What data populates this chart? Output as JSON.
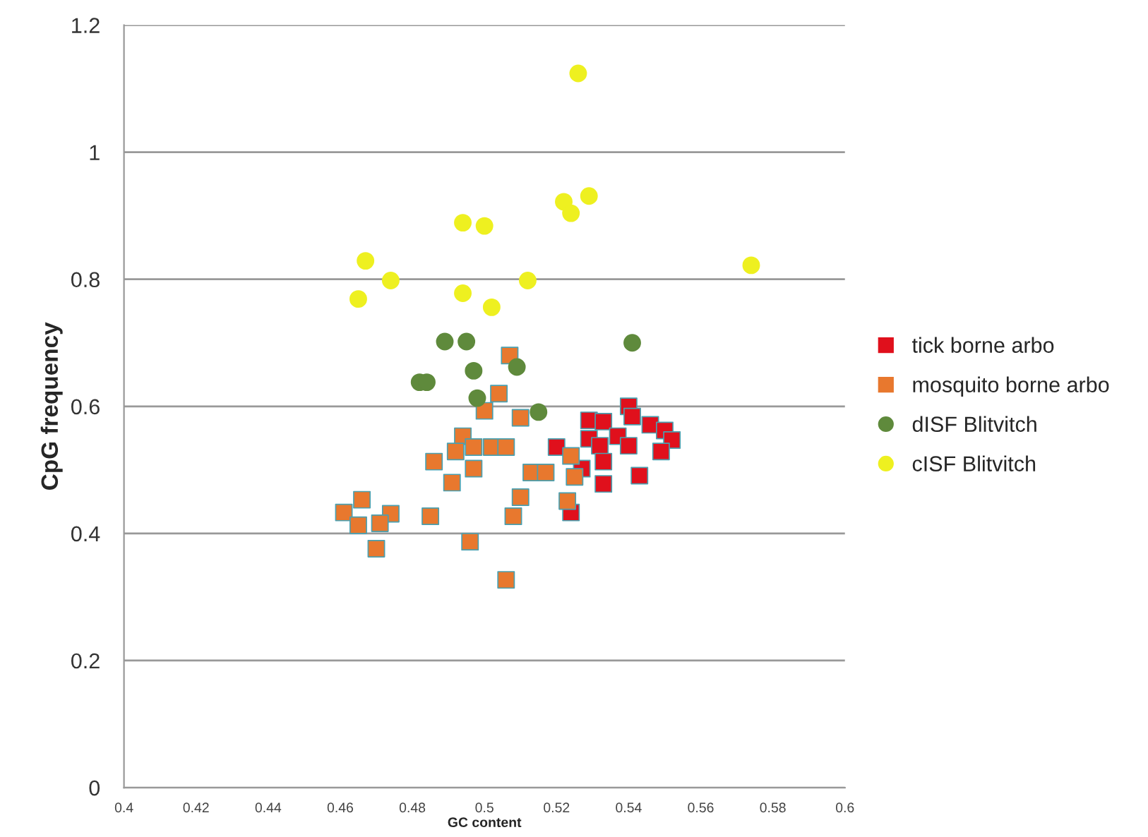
{
  "chart_data": {
    "type": "scatter",
    "xlabel": "GC content",
    "ylabel": "CpG frequency",
    "xlim": [
      0.4,
      0.6
    ],
    "ylim": [
      0,
      1.2
    ],
    "xticks": [
      0.4,
      0.42,
      0.44,
      0.46,
      0.48,
      0.5,
      0.52,
      0.54,
      0.56,
      0.58,
      0.6
    ],
    "yticks": [
      0,
      0.2,
      0.4,
      0.6,
      0.8,
      1,
      1.2
    ],
    "grid": "y",
    "legend": "right",
    "series": [
      {
        "name": "tick borne arbo",
        "color": "#e0101c",
        "marker": "square",
        "x": [
          0.54,
          0.541,
          0.529,
          0.533,
          0.546,
          0.55,
          0.552,
          0.529,
          0.537,
          0.532,
          0.54,
          0.549,
          0.533,
          0.527,
          0.543,
          0.533,
          0.524,
          0.52
        ],
        "values": [
          0.6,
          0.584,
          0.578,
          0.576,
          0.571,
          0.562,
          0.547,
          0.549,
          0.553,
          0.538,
          0.538,
          0.529,
          0.513,
          0.502,
          0.491,
          0.478,
          0.433,
          0.536
        ]
      },
      {
        "name": "mosquito borne arbo",
        "color": "#e8782e",
        "marker": "square",
        "x": [
          0.507,
          0.504,
          0.5,
          0.51,
          0.494,
          0.497,
          0.492,
          0.502,
          0.506,
          0.486,
          0.497,
          0.513,
          0.517,
          0.524,
          0.525,
          0.491,
          0.51,
          0.523,
          0.466,
          0.461,
          0.474,
          0.465,
          0.471,
          0.485,
          0.508,
          0.47,
          0.496,
          0.506
        ],
        "values": [
          0.68,
          0.62,
          0.593,
          0.582,
          0.553,
          0.536,
          0.529,
          0.536,
          0.536,
          0.513,
          0.502,
          0.496,
          0.496,
          0.522,
          0.489,
          0.48,
          0.457,
          0.451,
          0.453,
          0.433,
          0.431,
          0.413,
          0.416,
          0.427,
          0.427,
          0.376,
          0.387,
          0.327
        ]
      },
      {
        "name": "dISF Blitvitch",
        "color": "#5f8a3c",
        "marker": "circle",
        "x": [
          0.489,
          0.495,
          0.541,
          0.482,
          0.497,
          0.509,
          0.498,
          0.515,
          0.484
        ],
        "values": [
          0.702,
          0.702,
          0.7,
          0.638,
          0.656,
          0.662,
          0.613,
          0.591,
          0.638
        ]
      },
      {
        "name": "cISF Blitvitch",
        "color": "#eef020",
        "marker": "circle",
        "x": [
          0.526,
          0.522,
          0.524,
          0.529,
          0.494,
          0.5,
          0.574,
          0.467,
          0.474,
          0.465,
          0.494,
          0.502,
          0.512
        ],
        "values": [
          1.124,
          0.922,
          0.904,
          0.931,
          0.889,
          0.884,
          0.822,
          0.829,
          0.798,
          0.769,
          0.778,
          0.756,
          0.798
        ]
      }
    ]
  }
}
